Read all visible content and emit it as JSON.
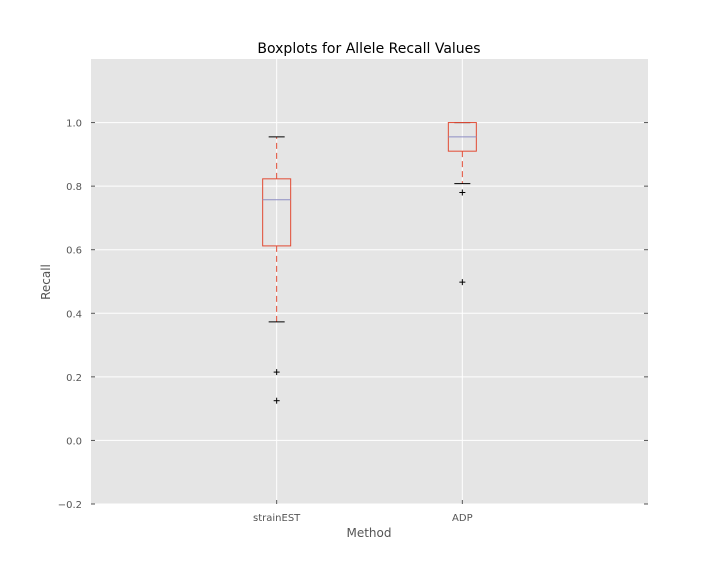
{
  "chart_data": {
    "type": "box",
    "title": "Boxplots for Allele Recall Values",
    "xlabel": "Method",
    "ylabel": "Recall",
    "ylim": [
      -0.2,
      1.2
    ],
    "yticks": [
      -0.2,
      0.0,
      0.2,
      0.4,
      0.6,
      0.8,
      1.0
    ],
    "ytick_labels": [
      "−0.2",
      "0.0",
      "0.2",
      "0.4",
      "0.6",
      "0.8",
      "1.0"
    ],
    "grid": true,
    "categories": [
      "strainEST",
      "ADP"
    ],
    "boxes": [
      {
        "name": "strainEST",
        "whisker_low": 0.373,
        "q1": 0.612,
        "median": 0.757,
        "q3": 0.823,
        "whisker_high": 0.955,
        "outliers": [
          0.215,
          0.125
        ]
      },
      {
        "name": "ADP",
        "whisker_low": 0.808,
        "q1": 0.91,
        "median": 0.955,
        "q3": 1.0,
        "whisker_high": 1.0,
        "outliers": [
          0.78,
          0.498
        ]
      }
    ],
    "colors": {
      "plot_bg": "#e5e5e5",
      "grid": "#ffffff",
      "box": "#e24a33",
      "median": "#8e8ec4",
      "whisker_cap": "#000000",
      "flier": "#000000",
      "text": "#555555"
    }
  }
}
